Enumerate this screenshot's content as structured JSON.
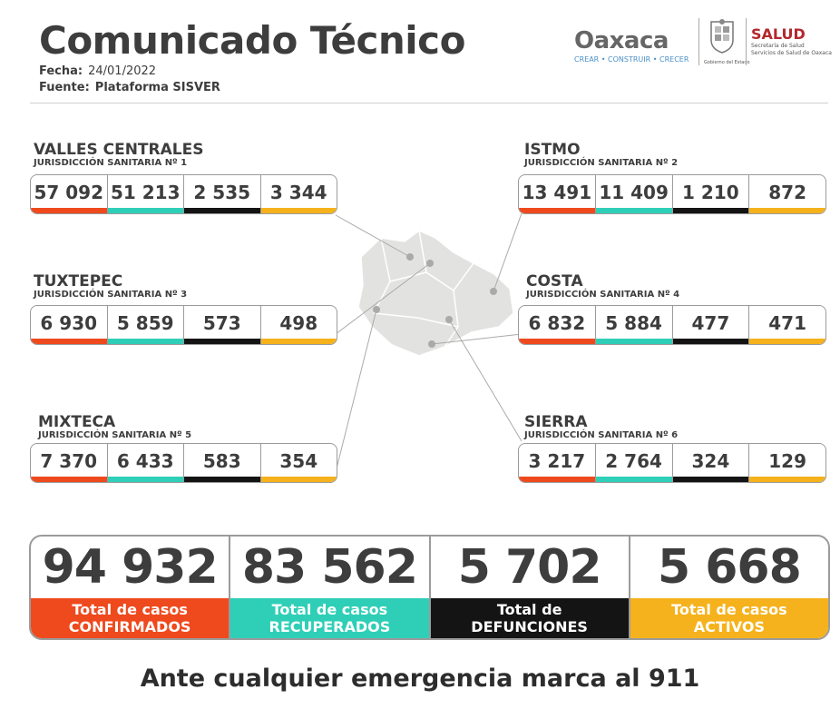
{
  "header": {
    "title": "Comunicado Técnico",
    "fecha_label": "Fecha:",
    "fecha_value": "24/01/2022",
    "fuente_label": "Fuente:",
    "fuente_value": "Plataforma SISVER"
  },
  "logos": {
    "oaxaca_word": "Oaxaca",
    "oaxaca_tagline": "CREAR • CONSTRUIR • CRECER",
    "gobierno": "Gobierno del Estado",
    "salud_word": "SALUD",
    "salud_line1": "Secretaría de Salud",
    "salud_line2": "Servicios de Salud de Oaxaca"
  },
  "colors": {
    "confirmados": "#ee4a1e",
    "recuperados": "#2fcfb7",
    "defunciones": "#141414",
    "activos": "#f5b21c",
    "map_fill": "#e2e2e0"
  },
  "regions": {
    "valles": {
      "name": "VALLES CENTRALES",
      "sub": "JURISDICCIÓN SANITARIA Nº 1",
      "values": [
        "57 092",
        "51 213",
        "2 535",
        "3 344"
      ]
    },
    "istmo": {
      "name": "ISTMO",
      "sub": "JURISDICCIÓN SANITARIA Nº 2",
      "values": [
        "13 491",
        "11 409",
        "1 210",
        "872"
      ]
    },
    "tuxtepec": {
      "name": "TUXTEPEC",
      "sub": "JURISDICCIÓN SANITARIA Nº 3",
      "values": [
        "6 930",
        "5 859",
        "573",
        "498"
      ]
    },
    "costa": {
      "name": "COSTA",
      "sub": "JURISDICCIÓN SANITARIA Nº 4",
      "values": [
        "6 832",
        "5 884",
        "477",
        "471"
      ]
    },
    "mixteca": {
      "name": "MIXTECA",
      "sub": "JURISDICCIÓN SANITARIA Nº 5",
      "values": [
        "7 370",
        "6 433",
        "583",
        "354"
      ]
    },
    "sierra": {
      "name": "SIERRA",
      "sub": "JURISDICCIÓN SANITARIA Nº 6",
      "values": [
        "3 217",
        "2 764",
        "324",
        "129"
      ]
    }
  },
  "totals": {
    "confirmados": {
      "value": "94 932",
      "line1": "Total de casos",
      "line2": "CONFIRMADOS"
    },
    "recuperados": {
      "value": "83 562",
      "line1": "Total de casos",
      "line2": "RECUPERADOS"
    },
    "defunciones": {
      "value": "5 702",
      "line1": "Total de",
      "line2": "DEFUNCIONES"
    },
    "activos": {
      "value": "5 668",
      "line1": "Total de casos",
      "line2": "ACTIVOS"
    }
  },
  "footer": "Ante cualquier emergencia marca al 911"
}
